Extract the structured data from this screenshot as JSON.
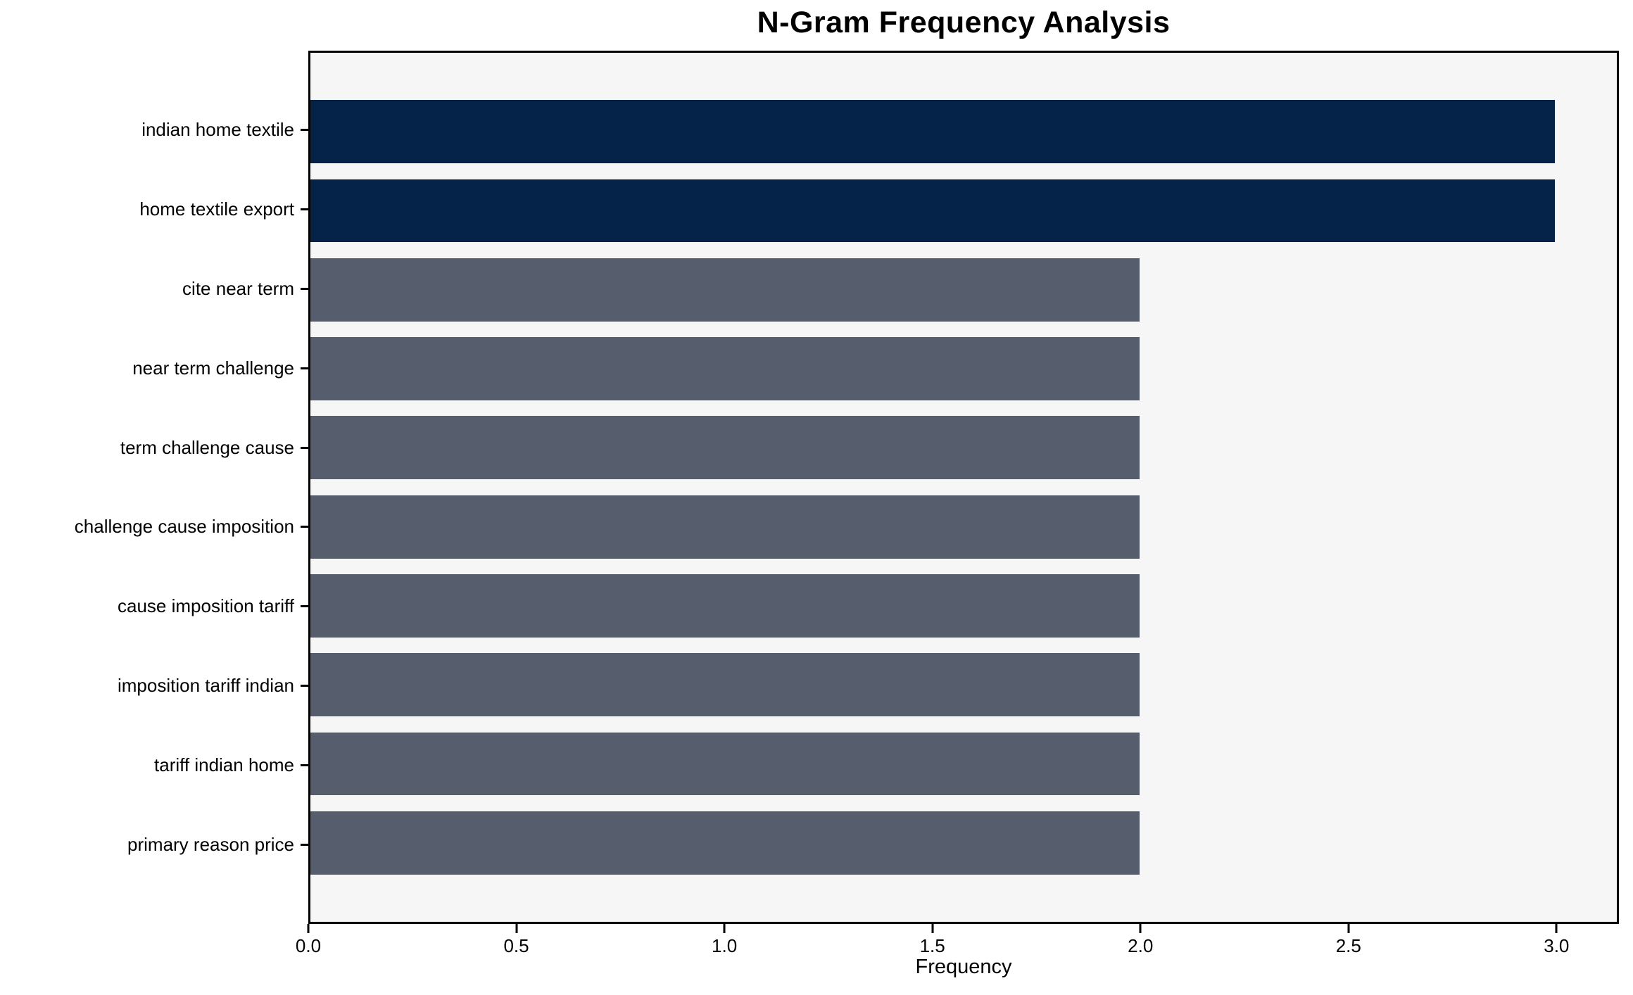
{
  "chart_data": {
    "type": "bar",
    "orientation": "horizontal",
    "title": "N-Gram Frequency Analysis",
    "xlabel": "Frequency",
    "ylabel": "",
    "categories": [
      "indian home textile",
      "home textile export",
      "cite near term",
      "near term challenge",
      "term challenge cause",
      "challenge cause imposition",
      "cause imposition tariff",
      "imposition tariff indian",
      "tariff indian home",
      "primary reason price"
    ],
    "values": [
      3,
      3,
      2,
      2,
      2,
      2,
      2,
      2,
      2,
      2
    ],
    "bar_colors": [
      "#052349",
      "#052349",
      "#565d6d",
      "#565d6d",
      "#565d6d",
      "#565d6d",
      "#565d6d",
      "#565d6d",
      "#565d6d",
      "#565d6d"
    ],
    "xticks": [
      "0.0",
      "0.5",
      "1.0",
      "1.5",
      "2.0",
      "2.5",
      "3.0"
    ],
    "xlim": [
      0,
      3.15
    ],
    "grid": "off",
    "legend": "none",
    "colors": {
      "bar_high": "#052349",
      "bar_low": "#565d6d",
      "plot_background": "#f6f6f7",
      "figure_background": "#ffffff",
      "spine": "#000000",
      "text": "#000000"
    }
  }
}
